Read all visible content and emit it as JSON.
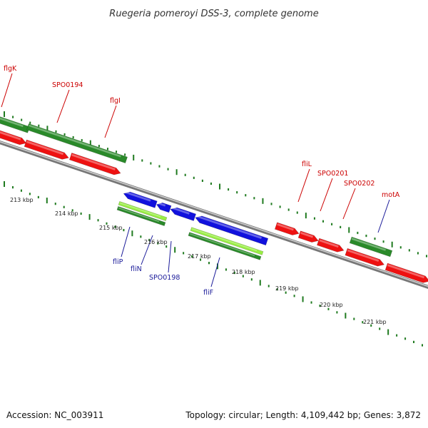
{
  "title": "Ruegeria pomeroyi DSS-3, complete genome",
  "footer": {
    "accession": "Accession: NC_003911",
    "topology": "Topology: circular; Length: 4,109,442 bp; Genes: 3,872"
  },
  "colors": {
    "forward_cds": "#ee1111",
    "reverse_cds": "#1111dd",
    "gene": "#2a8a2a",
    "rrna_light": "#99ee44",
    "backbone": "#888888",
    "tick": "#1f7a1f",
    "label_forward": "#cc0000",
    "label_reverse": "#1a1a99"
  },
  "ruler": [
    "213 kbp",
    "214 kbp",
    "215 kbp",
    "216 kbp",
    "217 kbp",
    "218 kbp",
    "219 kbp",
    "220 kbp",
    "221 kbp"
  ],
  "labels_forward": [
    "flgK",
    "SPO0194",
    "flgI",
    "fliL",
    "SPO0201",
    "SPO0202",
    "motA"
  ],
  "labels_reverse": [
    "fliP",
    "fliN",
    "SPO0198",
    "fliF"
  ]
}
